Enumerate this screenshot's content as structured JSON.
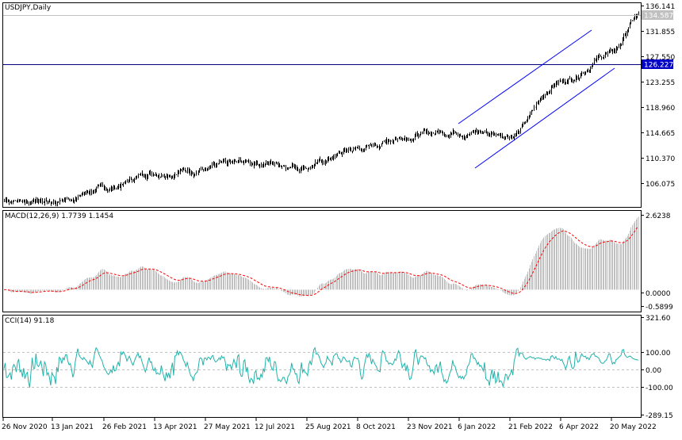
{
  "colors": {
    "background": "#ffffff",
    "bars": "#000000",
    "frame": "#000000",
    "horizontal_line": "#000080",
    "channel": "#0000ff",
    "price_tag": "#c0c0c0",
    "level_tag": "#0000c8",
    "macd_hist": "#c0c0c0",
    "macd_signal": "#ff0000",
    "cci": "#20b2aa",
    "level_lines": "#c0c0c0"
  },
  "price_panel": {
    "title": "USDJPY,Daily",
    "axis_labels": [
      "136.141",
      "131.855",
      "127.550",
      "123.255",
      "118.960",
      "114.665",
      "110.370",
      "106.075"
    ],
    "current_price": "134.587",
    "line_level": "126.227"
  },
  "macd_panel": {
    "title": "MACD(12,26,9) 1.7739 1.1454",
    "axis_labels": [
      "2.6238",
      "0.0000",
      "-0.5899"
    ]
  },
  "cci_panel": {
    "title": "CCI(14) 91.18",
    "axis_labels": [
      "321.60",
      "100.00",
      "0.00",
      "-100.00",
      "-289.15"
    ]
  },
  "time_axis": [
    "26 Nov 2020",
    "13 Jan 2021",
    "26 Feb 2021",
    "13 Apr 2021",
    "27 May 2021",
    "12 Jul 2021",
    "25 Aug 2021",
    "8 Oct 2021",
    "23 Nov 2021",
    "6 Jan 2022",
    "21 Feb 2022",
    "6 Apr 2022",
    "20 May 2022"
  ],
  "chart_data": {
    "type": "line",
    "symbol": "USDJPY",
    "timeframe": "Daily",
    "x": [
      "26 Nov 2020",
      "13 Jan 2021",
      "26 Feb 2021",
      "13 Apr 2021",
      "27 May 2021",
      "12 Jul 2021",
      "25 Aug 2021",
      "8 Oct 2021",
      "23 Nov 2021",
      "6 Jan 2022",
      "21 Feb 2022",
      "6 Apr 2022",
      "20 May 2022"
    ],
    "close": [
      104.2,
      104.0,
      105.9,
      108.8,
      109.3,
      110.4,
      109.9,
      112.5,
      114.9,
      115.6,
      115.0,
      123.8,
      128.4
    ],
    "current_close": 134.587,
    "horizontal_level": 126.227,
    "ylim": [
      103.0,
      136.141
    ],
    "macd": {
      "main": 1.7739,
      "signal": 1.1454,
      "ylim": [
        -0.5899,
        2.6238
      ]
    },
    "cci": {
      "value": 91.18,
      "levels": [
        100,
        0,
        -100
      ],
      "ylim": [
        -289.15,
        321.6
      ]
    }
  }
}
